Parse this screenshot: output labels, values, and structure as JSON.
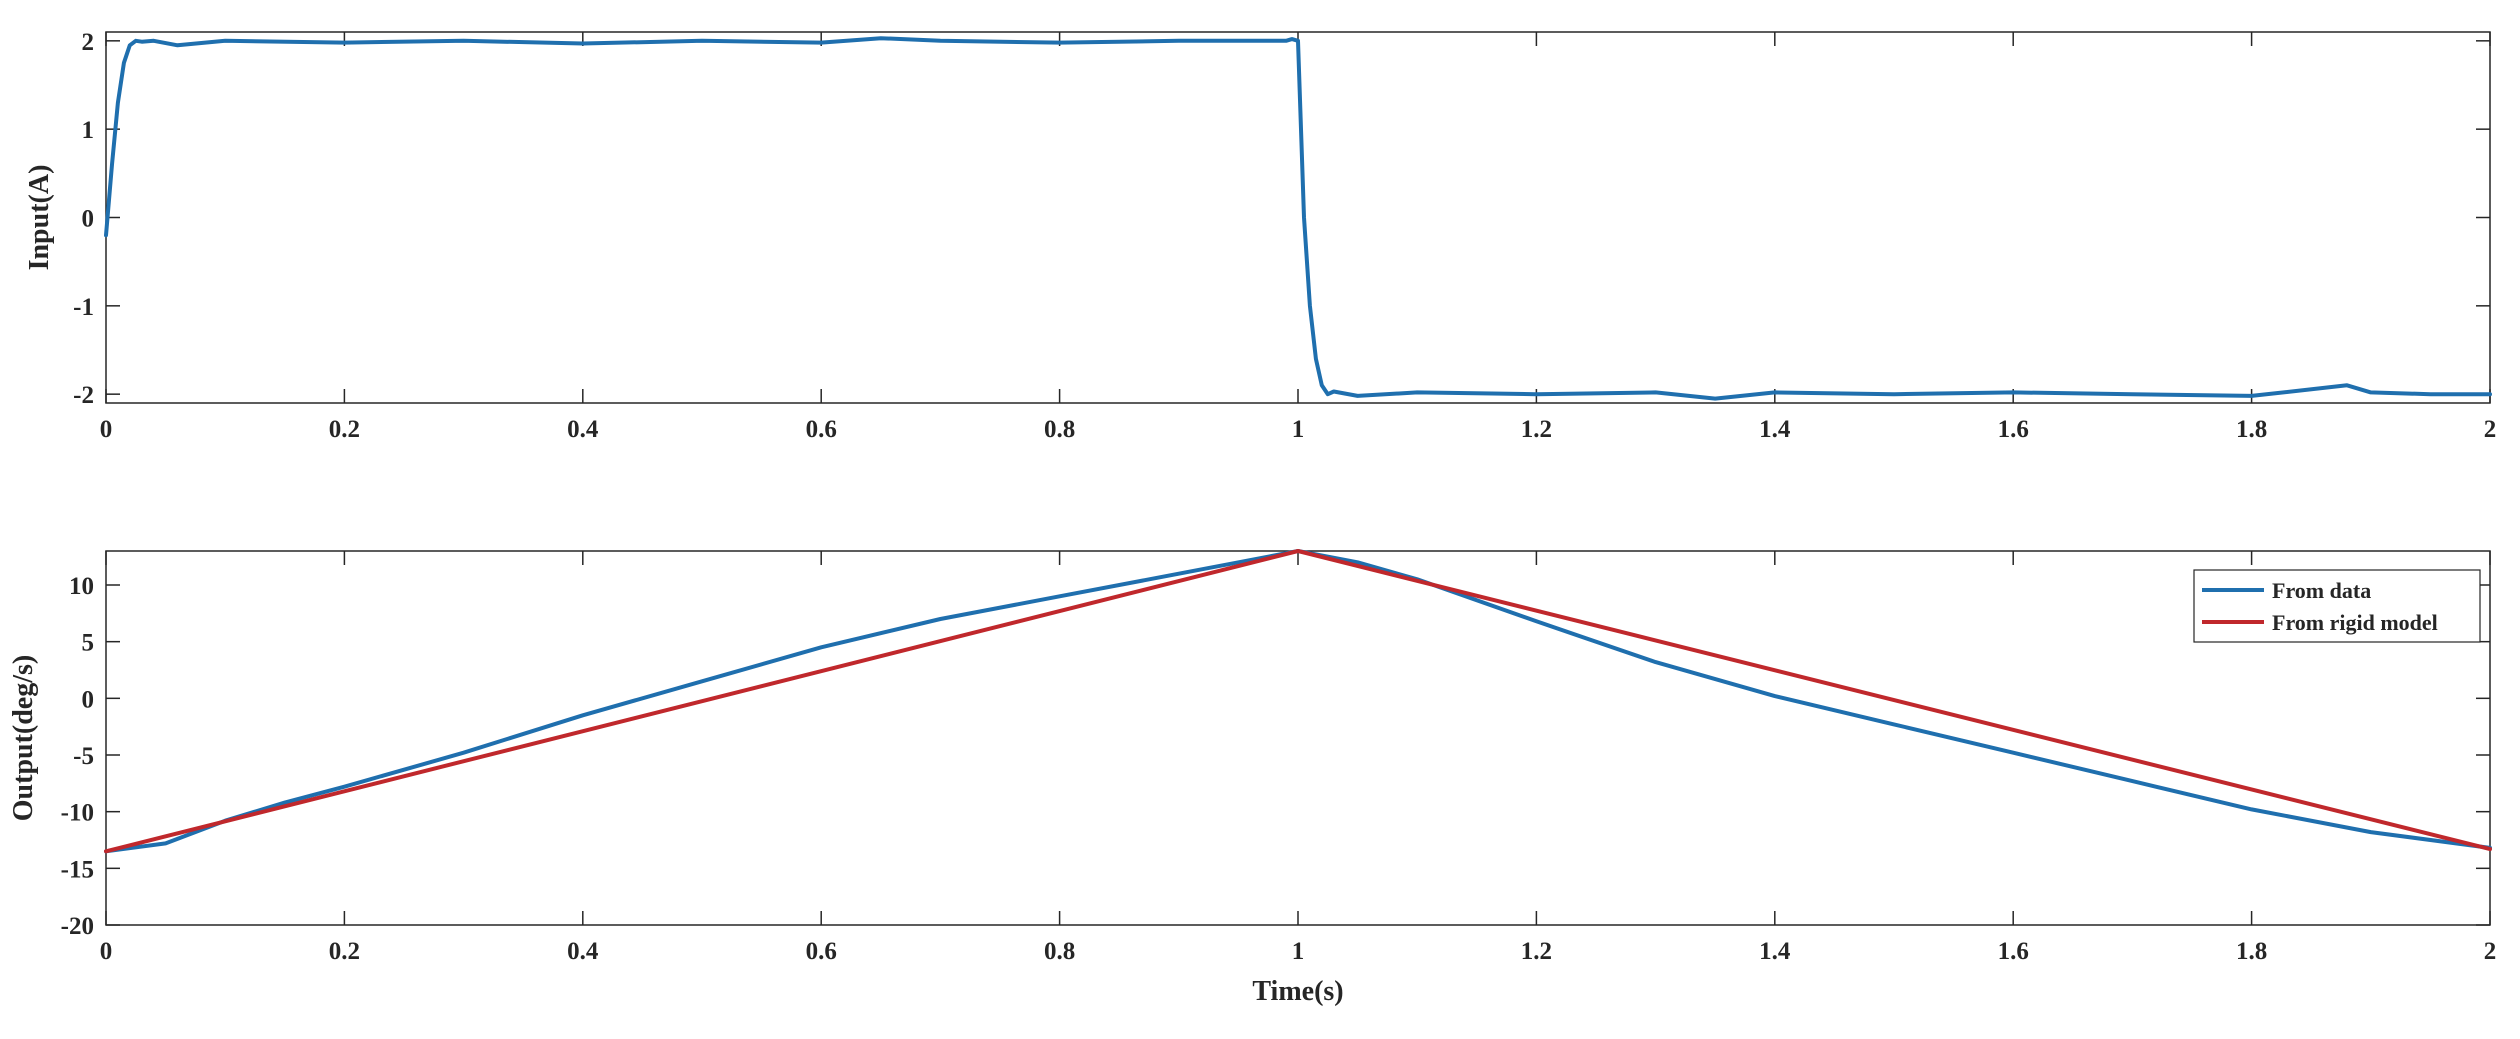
{
  "chart_data": [
    {
      "type": "line",
      "title": "",
      "xlabel": "",
      "ylabel": "Input(A)",
      "xlim": [
        0,
        2
      ],
      "ylim": [
        -2.1,
        2.1
      ],
      "xticks": [
        0,
        0.2,
        0.4,
        0.6,
        0.8,
        1,
        1.2,
        1.4,
        1.6,
        1.8,
        2
      ],
      "xtick_labels": [
        "0",
        "0.2",
        "0.4",
        "0.6",
        "0.8",
        "1",
        "1.2",
        "1.4",
        "1.6",
        "1.8",
        "2"
      ],
      "yticks": [
        -2,
        -1,
        0,
        1,
        2
      ],
      "ytick_labels": [
        "-2",
        "-1",
        "0",
        "1",
        "2"
      ],
      "grid": false,
      "legend": null,
      "series": [
        {
          "color": "#1f6fae",
          "x": [
            0,
            0.005,
            0.01,
            0.015,
            0.02,
            0.025,
            0.03,
            0.04,
            0.06,
            0.1,
            0.2,
            0.3,
            0.4,
            0.5,
            0.6,
            0.65,
            0.7,
            0.8,
            0.9,
            0.99,
            0.995,
            1.0,
            1.002,
            1.005,
            1.01,
            1.015,
            1.02,
            1.025,
            1.03,
            1.05,
            1.1,
            1.2,
            1.3,
            1.35,
            1.4,
            1.5,
            1.6,
            1.7,
            1.8,
            1.88,
            1.9,
            1.95,
            2.0
          ],
          "y": [
            -0.2,
            0.6,
            1.3,
            1.75,
            1.95,
            2.0,
            1.99,
            2.0,
            1.95,
            2.0,
            1.98,
            2.0,
            1.97,
            2.0,
            1.98,
            2.03,
            2.0,
            1.98,
            2.0,
            2.0,
            2.02,
            2.0,
            1.2,
            0.0,
            -1.0,
            -1.6,
            -1.9,
            -2.0,
            -1.97,
            -2.02,
            -1.98,
            -2.0,
            -1.98,
            -2.05,
            -1.98,
            -2.0,
            -1.98,
            -2.0,
            -2.02,
            -1.9,
            -1.98,
            -2.0,
            -2.0
          ]
        }
      ]
    },
    {
      "type": "line",
      "title": "",
      "xlabel": "Time(s)",
      "ylabel": "Output(deg/s)",
      "xlim": [
        0,
        2
      ],
      "ylim": [
        -20,
        13
      ],
      "xticks": [
        0,
        0.2,
        0.4,
        0.6,
        0.8,
        1,
        1.2,
        1.4,
        1.6,
        1.8,
        2
      ],
      "xtick_labels": [
        "0",
        "0.2",
        "0.4",
        "0.6",
        "0.8",
        "1",
        "1.2",
        "1.4",
        "1.6",
        "1.8",
        "2"
      ],
      "yticks": [
        -20,
        -15,
        -10,
        -5,
        0,
        5,
        10
      ],
      "ytick_labels": [
        "-20",
        "-15",
        "-10",
        "-5",
        "0",
        "5",
        "10"
      ],
      "grid": false,
      "legend": "top-right",
      "series": [
        {
          "name": "From data",
          "color": "#1f6fae",
          "x": [
            0,
            0.05,
            0.1,
            0.15,
            0.2,
            0.3,
            0.4,
            0.5,
            0.6,
            0.7,
            0.8,
            0.9,
            1.0,
            1.05,
            1.1,
            1.2,
            1.3,
            1.4,
            1.5,
            1.6,
            1.7,
            1.8,
            1.9,
            2.0
          ],
          "y": [
            -13.5,
            -12.8,
            -10.8,
            -9.2,
            -7.8,
            -4.8,
            -1.5,
            1.5,
            4.5,
            7.0,
            9.0,
            11.0,
            13.0,
            12.0,
            10.5,
            6.8,
            3.2,
            0.2,
            -2.3,
            -4.8,
            -7.3,
            -9.8,
            -11.8,
            -13.2
          ]
        },
        {
          "name": "From rigid model",
          "color": "#c0282c",
          "x": [
            0,
            1,
            2
          ],
          "y": [
            -13.5,
            13.0,
            -13.3
          ]
        }
      ]
    }
  ]
}
